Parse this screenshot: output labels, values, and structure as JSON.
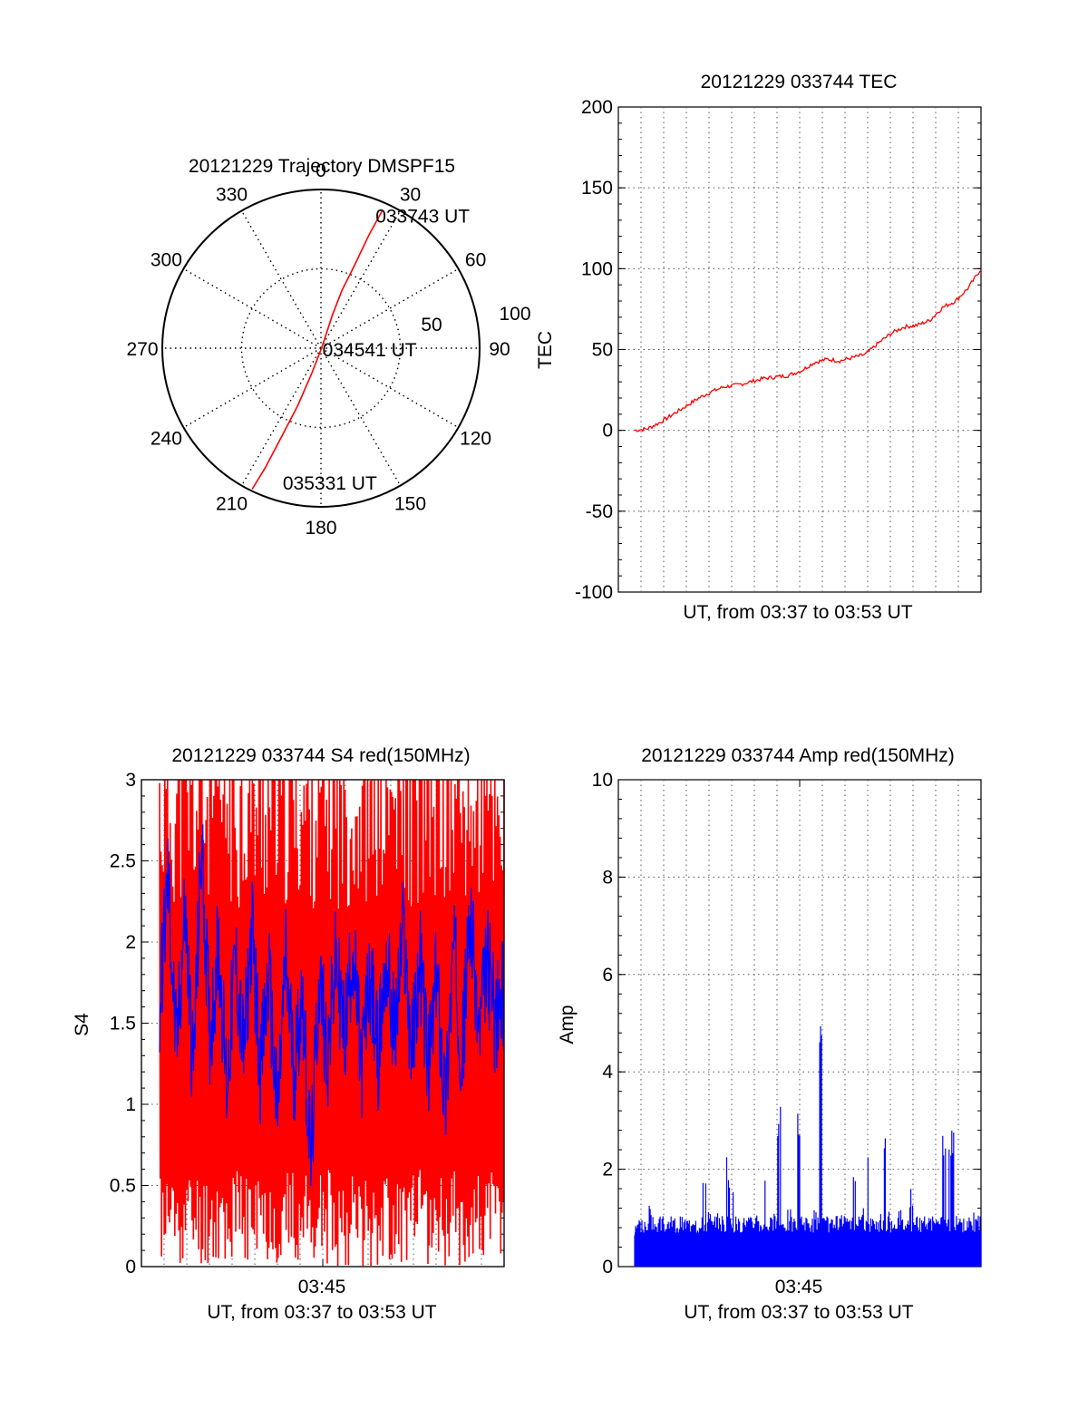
{
  "chart_data": [
    {
      "type": "polar",
      "title": "20121229 Trajectory DMSPF15",
      "angle_labels": [
        "0",
        "30",
        "60",
        "90",
        "120",
        "150",
        "180",
        "210",
        "240",
        "270",
        "300",
        "330"
      ],
      "radial_ticks": [
        "50",
        "100"
      ],
      "track_color": "#ff0000",
      "track": [
        {
          "az": 24,
          "el": 5
        },
        {
          "az": 23,
          "el": 20
        },
        {
          "az": 22,
          "el": 40
        },
        {
          "az": 20,
          "el": 55
        },
        {
          "az": 19,
          "el": 70
        },
        {
          "az": 40,
          "el": 89
        },
        {
          "az": 200,
          "el": 75
        },
        {
          "az": 202,
          "el": 55
        },
        {
          "az": 204,
          "el": 35
        },
        {
          "az": 205,
          "el": 15
        },
        {
          "az": 206,
          "el": 1
        }
      ],
      "annotations": [
        {
          "text": "033743 UT",
          "az": 25,
          "el": 7
        },
        {
          "text": "034541 UT",
          "az": 95,
          "el": 85
        },
        {
          "text": "035331 UT",
          "az": 193,
          "el": 12
        }
      ]
    },
    {
      "type": "line",
      "title": "20121229 033744 TEC",
      "xlabel": "UT, from 03:37 to 03:53 UT",
      "ylabel": "TEC",
      "ylim": [
        -100,
        200
      ],
      "yticks": [
        "200",
        "150",
        "100",
        "50",
        "0",
        "-50",
        "-100"
      ],
      "color": "#ff0000",
      "grid": true,
      "series": [
        {
          "values": [
            0,
            1,
            5,
            10,
            15,
            20,
            24,
            27,
            28,
            30,
            32,
            33,
            34,
            37,
            42,
            44,
            43,
            45,
            47,
            54,
            60,
            64,
            65,
            68,
            76,
            80,
            88,
            100
          ]
        }
      ]
    },
    {
      "type": "line",
      "title": "20121229 033744 S4 red(150MHz)",
      "xlabel": "UT, from 03:37 to 03:53 UT",
      "ylabel": "S4",
      "xtick": "03:45",
      "ylim": [
        0,
        3
      ],
      "yticks": [
        "3",
        "2.5",
        "2",
        "1.5",
        "1",
        "0.5",
        "0"
      ],
      "grid": true,
      "series": [
        {
          "color": "#ff0000",
          "values": [
            1.7,
            3.0,
            0.1,
            2.8,
            0.2,
            3.0,
            0.0,
            2.6,
            0.3,
            3.0,
            0.0,
            2.9,
            0.1,
            3.0,
            0.2,
            2.7,
            0.0,
            3.0,
            0.1,
            2.8,
            0.0,
            3.0,
            0.2,
            2.9,
            0.0,
            3.0,
            0.1,
            2.6,
            0.0,
            3.0,
            0.3,
            2.9,
            0.0,
            3.0,
            0.1,
            2.8,
            0.0,
            3.0,
            0.2,
            2.7,
            0.0,
            3.0
          ]
        },
        {
          "color": "#0000ff",
          "values": [
            1.6,
            2.4,
            1.3,
            2.2,
            1.2,
            2.6,
            1.4,
            2.0,
            1.1,
            1.9,
            1.3,
            2.1,
            1.2,
            1.8,
            0.9,
            1.9,
            1.2,
            1.7,
            0.6,
            1.8,
            1.3,
            1.9,
            1.4,
            2.0,
            1.2,
            1.8,
            1.3,
            1.9,
            1.4,
            2.1,
            1.3,
            1.9,
            1.2,
            1.8,
            1.0,
            2.0,
            1.3,
            2.2,
            1.4,
            1.9,
            1.5,
            1.7
          ]
        }
      ]
    },
    {
      "type": "bar",
      "title": "20121229 033744 Amp red(150MHz)",
      "xlabel": "UT, from 03:37 to 03:53 UT",
      "ylabel": "Amp",
      "xtick": "03:45",
      "ylim": [
        0,
        10
      ],
      "yticks": [
        "10",
        "8",
        "6",
        "4",
        "2",
        "0"
      ],
      "color": "#0000ff",
      "grid": true,
      "series": [
        {
          "values": [
            0.8,
            0.9,
            0.8,
            1.4,
            0.9,
            1.0,
            0.9,
            1.0,
            0.8,
            1.0,
            0.9,
            1.1,
            0.9,
            2.0,
            1.2,
            0.9,
            1.1,
            2.4,
            2.0,
            0.9,
            1.2,
            1.1,
            1.0,
            1.3,
            1.9,
            1.2,
            1.1,
            3.3,
            1.0,
            1.2,
            1.3,
            3.3,
            1.1,
            1.0,
            1.2,
            5.0,
            1.1,
            1.0,
            1.3,
            1.2,
            1.0,
            2.0,
            1.1,
            1.2,
            2.4,
            1.1,
            1.3,
            2.8,
            1.2,
            1.0,
            1.2,
            1.4,
            1.6,
            1.1,
            1.2,
            1.0,
            1.1,
            1.2,
            3.0,
            2.6,
            2.9,
            1.1,
            1.2,
            1.0,
            1.2,
            1.1
          ]
        }
      ]
    }
  ]
}
